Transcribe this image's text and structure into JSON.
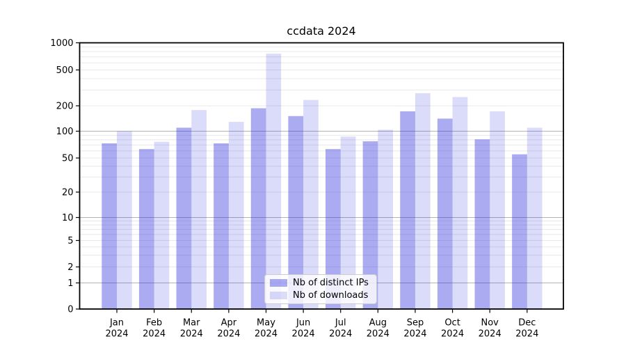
{
  "chart_data": {
    "type": "bar",
    "title": "ccdata 2024",
    "categories": [
      "Jan",
      "Feb",
      "Mar",
      "Apr",
      "May",
      "Jun",
      "Jul",
      "Aug",
      "Sep",
      "Oct",
      "Nov",
      "Dec"
    ],
    "x_tick_second_line": "2024",
    "series": [
      {
        "name": "Nb of distinct IPs",
        "color": "rgba(34,34,221,0.38)",
        "values": [
          73,
          63,
          110,
          73,
          187,
          151,
          63,
          77,
          172,
          141,
          81,
          55
        ]
      },
      {
        "name": "Nb of downloads",
        "color": "rgba(34,34,221,0.16)",
        "values": [
          100,
          76,
          178,
          129,
          757,
          232,
          87,
          104,
          276,
          250,
          172,
          110
        ]
      }
    ],
    "y_ticks": [
      0,
      1,
      2,
      5,
      10,
      20,
      50,
      100,
      200,
      500,
      1000
    ],
    "ylim": [
      0,
      1000
    ],
    "y_scale": "symlog",
    "grid": true,
    "legend_position": "lower center",
    "grid_colors": {
      "major": "#b3b3b3",
      "minor": "#e8e8e8",
      "spine": "#000000",
      "text": "#000000"
    }
  }
}
